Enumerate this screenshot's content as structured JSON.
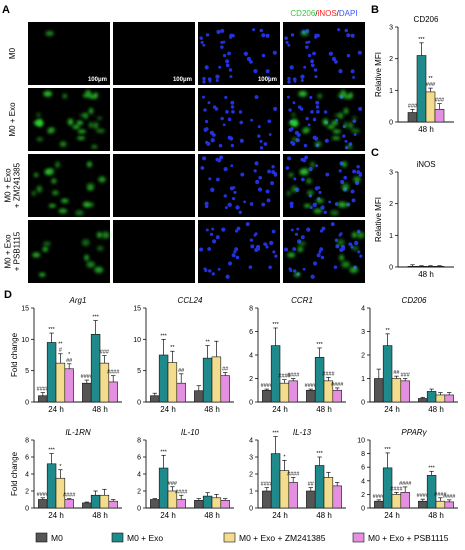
{
  "panel_letters": {
    "a": "A",
    "b": "B",
    "c": "C",
    "d": "D"
  },
  "micro": {
    "columns": [
      {
        "label": "CD206",
        "color": "#33cc33"
      },
      {
        "label": "iNOS",
        "color": "#ff2222"
      },
      {
        "label": "DAPI",
        "color": "#3355ff"
      }
    ],
    "merge_label_parts": [
      {
        "text": "CD206",
        "color": "#33cc33"
      },
      {
        "text": "/",
        "color": "#111111"
      },
      {
        "text": "iNOS",
        "color": "#ff2222"
      },
      {
        "text": "/",
        "color": "#111111"
      },
      {
        "text": "DAPI",
        "color": "#3355ff"
      }
    ],
    "rows": [
      {
        "lines": [
          "M0"
        ],
        "green_level": 0.03
      },
      {
        "lines": [
          "M0 + Exo"
        ],
        "green_level": 0.9
      },
      {
        "lines": [
          "M0 + Exo",
          "+ ZM241385"
        ],
        "green_level": 0.55
      },
      {
        "lines": [
          "M0 + Exo",
          "+ PSB1115"
        ],
        "green_level": 0.35
      }
    ],
    "scale_bar_label": "100μm"
  },
  "legend": [
    {
      "label": "M0",
      "color": "#555555"
    },
    {
      "label": "M0 + Exo",
      "color": "#1f8a8c"
    },
    {
      "label": "M0 + Exo + ZM241385",
      "color": "#f3dc8e"
    },
    {
      "label": "M0 + Exo + PSB1115",
      "color": "#e58fe2"
    }
  ],
  "chart_data": [
    {
      "id": "B",
      "type": "bar",
      "title": "CD206",
      "ylabel": "Relative MFI",
      "ylim": [
        0,
        3
      ],
      "yticks": [
        0,
        1,
        2,
        3
      ],
      "groups": [
        "48 h"
      ],
      "series": [
        {
          "name": "M0",
          "values": [
            0.3
          ],
          "err": [
            0.1
          ],
          "ann": [
            "###"
          ]
        },
        {
          "name": "M0 + Exo",
          "values": [
            2.1
          ],
          "err": [
            0.4
          ],
          "ann": [
            "***"
          ]
        },
        {
          "name": "M0 + Exo + ZM241385",
          "values": [
            0.95
          ],
          "err": [
            0.12
          ],
          "ann": [
            "**\n###"
          ]
        },
        {
          "name": "M0 + Exo + PSB1115",
          "values": [
            0.4
          ],
          "err": [
            0.18
          ],
          "ann": [
            "###"
          ]
        }
      ]
    },
    {
      "id": "C",
      "type": "bar",
      "title": "iNOS",
      "ylabel": "Relative MFI",
      "ylim": [
        0,
        3
      ],
      "yticks": [
        0,
        1,
        2,
        3
      ],
      "groups": [
        "48 h"
      ],
      "series": [
        {
          "name": "M0",
          "values": [
            0.02
          ],
          "err": [
            0.05
          ],
          "ann": [
            ""
          ]
        },
        {
          "name": "M0 + Exo",
          "values": [
            0.02
          ],
          "err": [
            0.02
          ],
          "ann": [
            ""
          ]
        },
        {
          "name": "M0 + Exo + ZM241385",
          "values": [
            0.02
          ],
          "err": [
            0.02
          ],
          "ann": [
            ""
          ]
        },
        {
          "name": "M0 + Exo + PSB1115",
          "values": [
            0.02
          ],
          "err": [
            0.02
          ],
          "ann": [
            ""
          ]
        }
      ]
    },
    {
      "id": "Arg1",
      "type": "bar",
      "title": "Arg1",
      "ylabel": "Fold change",
      "ylim": [
        0,
        15
      ],
      "yticks": [
        0,
        5,
        10,
        15
      ],
      "groups": [
        "24 h",
        "48 h"
      ],
      "series": [
        {
          "name": "M0",
          "values": [
            1,
            3
          ],
          "err": [
            0.5,
            0.5
          ],
          "ann": [
            "####",
            "####"
          ]
        },
        {
          "name": "M0 + Exo",
          "values": [
            9.5,
            10.8
          ],
          "err": [
            1.5,
            2.2
          ],
          "ann": [
            "***",
            "***"
          ]
        },
        {
          "name": "M0 + Exo + ZM241385",
          "values": [
            6.2,
            6.2
          ],
          "err": [
            1.5,
            1.2
          ],
          "ann": [
            "**\n#",
            "###"
          ]
        },
        {
          "name": "M0 + Exo + PSB1115",
          "values": [
            5.3,
            3.2
          ],
          "err": [
            0.8,
            1
          ],
          "ann": [
            "*\n##",
            "####"
          ]
        }
      ]
    },
    {
      "id": "CCL24",
      "type": "bar",
      "title": "CCL24",
      "ylabel": "",
      "ylim": [
        0,
        15
      ],
      "yticks": [
        0,
        5,
        10,
        15
      ],
      "groups": [
        "24 h",
        "48 h"
      ],
      "series": [
        {
          "name": "M0",
          "values": [
            1,
            1.8
          ],
          "err": [
            0.4,
            0.8
          ],
          "ann": [
            "",
            ""
          ]
        },
        {
          "name": "M0 + Exo",
          "values": [
            7.5,
            7
          ],
          "err": [
            2.5,
            2
          ],
          "ann": [
            "***",
            "**"
          ]
        },
        {
          "name": "M0 + Exo + ZM241385",
          "values": [
            6.3,
            7.2
          ],
          "err": [
            1.8,
            2.5
          ],
          "ann": [
            "**",
            ""
          ]
        },
        {
          "name": "M0 + Exo + PSB1115",
          "values": [
            3,
            4.2
          ],
          "err": [
            1.5,
            0.5
          ],
          "ann": [
            "##",
            "##"
          ]
        }
      ]
    },
    {
      "id": "CCR1",
      "type": "bar",
      "title": "CCR1",
      "ylabel": "",
      "ylim": [
        0,
        8
      ],
      "yticks": [
        0,
        2,
        4,
        6,
        8
      ],
      "groups": [
        "24 h",
        "48 h"
      ],
      "series": [
        {
          "name": "M0",
          "values": [
            1,
            1
          ],
          "err": [
            0.1,
            0.1
          ],
          "ann": [
            "####",
            "####"
          ]
        },
        {
          "name": "M0 + Exo",
          "values": [
            4.8,
            3.8
          ],
          "err": [
            1.5,
            0.8
          ],
          "ann": [
            "***",
            "***"
          ]
        },
        {
          "name": "M0 + Exo + ZM241385",
          "values": [
            1.6,
            1.8
          ],
          "err": [
            0.3,
            0.3
          ],
          "ann": [
            "####",
            "####"
          ]
        },
        {
          "name": "M0 + Exo + PSB1115",
          "values": [
            1.8,
            1
          ],
          "err": [
            0.2,
            0.2
          ],
          "ann": [
            "####",
            "####"
          ]
        }
      ]
    },
    {
      "id": "CD206",
      "type": "bar",
      "title": "CD206",
      "ylabel": "",
      "ylim": [
        0,
        4
      ],
      "yticks": [
        0,
        1,
        2,
        3,
        4
      ],
      "groups": [
        "24 h",
        "48 h"
      ],
      "series": [
        {
          "name": "M0",
          "values": [
            1,
            0.15
          ],
          "err": [
            0.4,
            0.05
          ],
          "ann": [
            "",
            ""
          ]
        },
        {
          "name": "M0 + Exo",
          "values": [
            2.4,
            0.45
          ],
          "err": [
            0.5,
            0.1
          ],
          "ann": [
            "**",
            ""
          ]
        },
        {
          "name": "M0 + Exo + ZM241385",
          "values": [
            1,
            0.3
          ],
          "err": [
            0.1,
            0.1
          ],
          "ann": [
            "##",
            ""
          ]
        },
        {
          "name": "M0 + Exo + PSB1115",
          "values": [
            0.9,
            0.3
          ],
          "err": [
            0.1,
            0.1
          ],
          "ann": [
            "###",
            ""
          ]
        }
      ]
    },
    {
      "id": "IL-1RN",
      "type": "bar",
      "title": "IL-1RN",
      "ylabel": "Fold change",
      "ylim": [
        0,
        8
      ],
      "yticks": [
        0,
        2,
        4,
        6,
        8
      ],
      "groups": [
        "24 h",
        "48 h"
      ],
      "series": [
        {
          "name": "M0",
          "values": [
            1,
            0.6
          ],
          "err": [
            0.2,
            0.1
          ],
          "ann": [
            "####",
            ""
          ]
        },
        {
          "name": "M0 + Exo",
          "values": [
            5.2,
            1.5
          ],
          "err": [
            1.2,
            0.5
          ],
          "ann": [
            "***",
            ""
          ]
        },
        {
          "name": "M0 + Exo + ZM241385",
          "values": [
            3.5,
            1.5
          ],
          "err": [
            1,
            0.7
          ],
          "ann": [
            "*",
            ""
          ]
        },
        {
          "name": "M0 + Exo + PSB1115",
          "values": [
            1,
            0.8
          ],
          "err": [
            0.1,
            0.2
          ],
          "ann": [
            "####",
            ""
          ]
        }
      ]
    },
    {
      "id": "IL-10",
      "type": "bar",
      "title": "IL-10",
      "ylabel": "",
      "ylim": [
        0,
        8
      ],
      "yticks": [
        0,
        2,
        4,
        6,
        8
      ],
      "groups": [
        "24 h",
        "48 h"
      ],
      "series": [
        {
          "name": "M0",
          "values": [
            1,
            0.9
          ],
          "err": [
            0.1,
            0.2
          ],
          "ann": [
            "",
            ""
          ]
        },
        {
          "name": "M0 + Exo",
          "values": [
            4.7,
            1.4
          ],
          "err": [
            1.5,
            0.4
          ],
          "ann": [
            "***",
            ""
          ]
        },
        {
          "name": "M0 + Exo + ZM241385",
          "values": [
            2,
            1.2
          ],
          "err": [
            0.5,
            0.4
          ],
          "ann": [
            "###",
            ""
          ]
        },
        {
          "name": "M0 + Exo + PSB1115",
          "values": [
            1,
            0.9
          ],
          "err": [
            0.5,
            0.2
          ],
          "ann": [
            "####",
            ""
          ]
        }
      ]
    },
    {
      "id": "IL-13",
      "type": "bar",
      "title": "IL-13",
      "ylabel": "",
      "ylim": [
        0,
        4
      ],
      "yticks": [
        0,
        1,
        2,
        3,
        4
      ],
      "groups": [
        "24 h",
        "48 h"
      ],
      "series": [
        {
          "name": "M0",
          "values": [
            1,
            1
          ],
          "err": [
            0.2,
            0.2
          ],
          "ann": [
            "####",
            "##"
          ]
        },
        {
          "name": "M0 + Exo",
          "values": [
            3.2,
            2.5
          ],
          "err": [
            1,
            0.5
          ],
          "ann": [
            "***",
            "***"
          ]
        },
        {
          "name": "M0 + Exo + ZM241385",
          "values": [
            2.2,
            1.8
          ],
          "err": [
            0.6,
            0.3
          ],
          "ann": [
            "*",
            ""
          ]
        },
        {
          "name": "M0 + Exo + PSB1115",
          "values": [
            1.5,
            1.3
          ],
          "err": [
            0.3,
            0.2
          ],
          "ann": [
            "####",
            ""
          ]
        }
      ]
    },
    {
      "id": "PPARy",
      "type": "bar",
      "title": "PPARγ",
      "ylabel": "",
      "ylim": [
        0,
        10
      ],
      "yticks": [
        0,
        2,
        4,
        6,
        8,
        10
      ],
      "groups": [
        "24 h",
        "48 h"
      ],
      "series": [
        {
          "name": "M0",
          "values": [
            1,
            1
          ],
          "err": [
            0.2,
            0.3
          ],
          "ann": [
            "####",
            "####"
          ]
        },
        {
          "name": "M0 + Exo",
          "values": [
            5.9,
            4.8
          ],
          "err": [
            2.2,
            0.6
          ],
          "ann": [
            "***",
            "***"
          ]
        },
        {
          "name": "M0 + Exo + ZM241385",
          "values": [
            2,
            1
          ],
          "err": [
            0.3,
            0.5
          ],
          "ann": [
            "####",
            "####"
          ]
        },
        {
          "name": "M0 + Exo + PSB1115",
          "values": [
            2.3,
            0.9
          ],
          "err": [
            0.8,
            0.3
          ],
          "ann": [
            "####",
            "####"
          ]
        }
      ]
    }
  ]
}
